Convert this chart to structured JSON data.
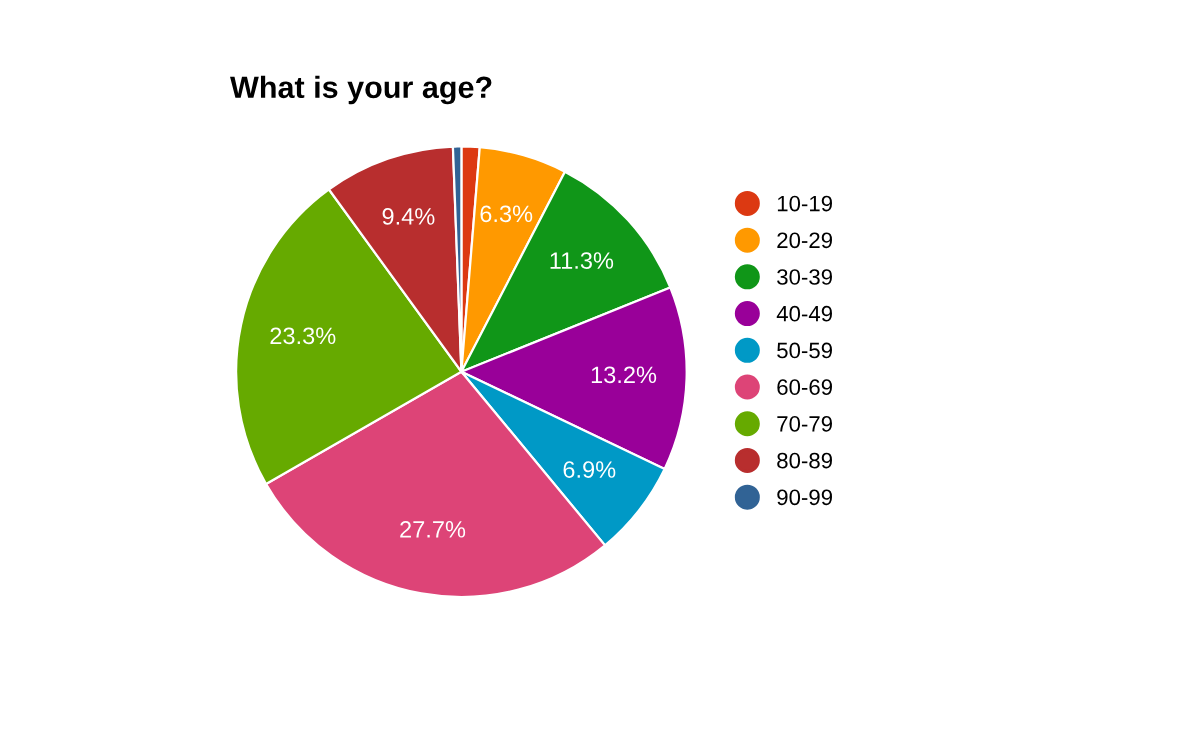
{
  "chart_data": {
    "type": "pie",
    "title": "What is your age?",
    "categories": [
      "10-19",
      "20-29",
      "30-39",
      "40-49",
      "50-59",
      "60-69",
      "70-79",
      "80-89",
      "90-99"
    ],
    "values": [
      1.3,
      6.3,
      11.3,
      13.2,
      6.9,
      27.7,
      23.3,
      9.4,
      0.6
    ],
    "value_labels": [
      null,
      "6.3%",
      "11.3%",
      "13.2%",
      "6.9%",
      "27.7%",
      "23.3%",
      "9.4%",
      null
    ],
    "colors": [
      "#dc3912",
      "#ff9900",
      "#109618",
      "#990099",
      "#0099c6",
      "#dd4477",
      "#66aa00",
      "#b82e2e",
      "#316395"
    ],
    "legend": "right"
  }
}
